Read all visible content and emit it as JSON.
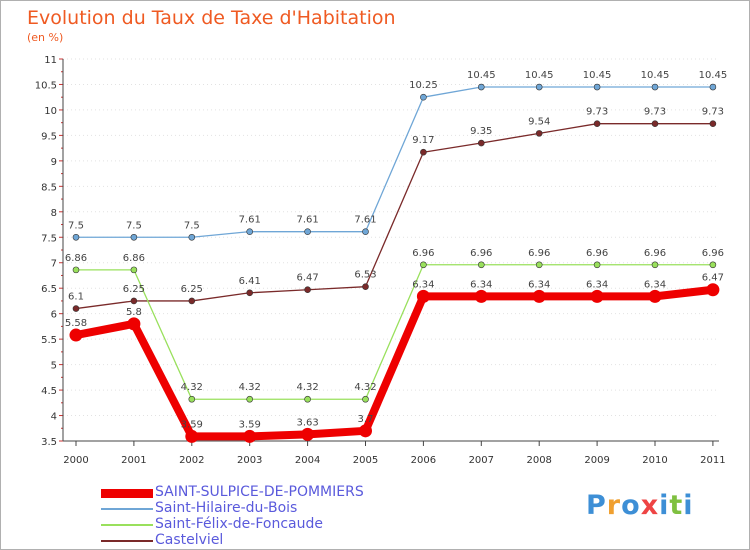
{
  "title": "Evolution du Taux de Taxe d'Habitation",
  "subtitle": "(en %)",
  "chart_data": {
    "type": "line",
    "title": "Evolution du Taux de Taxe d'Habitation",
    "subtitle": "(en %)",
    "xlabel": "",
    "ylabel": "",
    "ylim": [
      3.5,
      11
    ],
    "y_ticks": [
      "3.5",
      "4",
      "4.5",
      "5",
      "5.5",
      "6",
      "6.5",
      "7",
      "7.5",
      "8",
      "8.5",
      "9",
      "9.5",
      "10",
      "10.5",
      "11"
    ],
    "grid": "horizontal dotted",
    "legend_position": "bottom-left",
    "x": [
      "2000",
      "2001",
      "2002",
      "2003",
      "2004",
      "2005",
      "2006",
      "2007",
      "2008",
      "2009",
      "2010",
      "2011"
    ],
    "series": [
      {
        "name": "Saint-Hilaire-du-Bois",
        "color": "#6fa6d6",
        "values": [
          7.5,
          7.5,
          7.5,
          7.61,
          7.61,
          7.61,
          10.25,
          10.45,
          10.45,
          10.45,
          10.45,
          10.45
        ],
        "labels": [
          "7.5",
          "7.5",
          "7.5",
          "7.61",
          "7.61",
          "7.61",
          "10.25",
          "10.45",
          "10.45",
          "10.45",
          "10.45",
          "10.45"
        ]
      },
      {
        "name": "Castelviel",
        "color": "#7a2a2a",
        "values": [
          6.1,
          6.25,
          6.25,
          6.41,
          6.47,
          6.53,
          9.17,
          9.35,
          9.54,
          9.73,
          9.73,
          9.73
        ],
        "labels": [
          "6.1",
          "6.25",
          "6.25",
          "6.41",
          "6.47",
          "6.53",
          "9.17",
          "9.35",
          "9.54",
          "9.73",
          "9.73",
          "9.73"
        ]
      },
      {
        "name": "Saint-Félix-de-Foncaude",
        "color": "#99e05c",
        "values": [
          6.86,
          6.86,
          4.32,
          4.32,
          4.32,
          4.32,
          6.96,
          6.96,
          6.96,
          6.96,
          6.96,
          6.96
        ],
        "labels": [
          "6.86",
          "6.86",
          "4.32",
          "4.32",
          "4.32",
          "4.32",
          "6.96",
          "6.96",
          "6.96",
          "6.96",
          "6.96",
          "6.96"
        ]
      },
      {
        "name": "SAINT-SULPICE-DE-POMMIERS",
        "color": "#ee0000",
        "values": [
          5.58,
          5.8,
          3.59,
          3.59,
          3.63,
          3.7,
          6.34,
          6.34,
          6.34,
          6.34,
          6.34,
          6.47
        ],
        "labels": [
          "5.58",
          "5.8",
          "3.59",
          "3.59",
          "3.63",
          "3.7",
          "6.34",
          "6.34",
          "6.34",
          "6.34",
          "6.34",
          "6.47"
        ]
      }
    ],
    "legend": [
      {
        "name": "SAINT-SULPICE-DE-POMMIERS",
        "color": "#ee0000"
      },
      {
        "name": "Saint-Hilaire-du-Bois",
        "color": "#6fa6d6"
      },
      {
        "name": "Saint-Félix-de-Foncaude",
        "color": "#99e05c"
      },
      {
        "name": "Castelviel",
        "color": "#7a2a2a"
      }
    ]
  },
  "brand": {
    "text": "Proxiti",
    "colors": [
      "#3d8fd6",
      "#f0a030",
      "#3d8fd6",
      "#ee4444",
      "#3d8fd6",
      "#7fc040",
      "#3d8fd6"
    ]
  }
}
